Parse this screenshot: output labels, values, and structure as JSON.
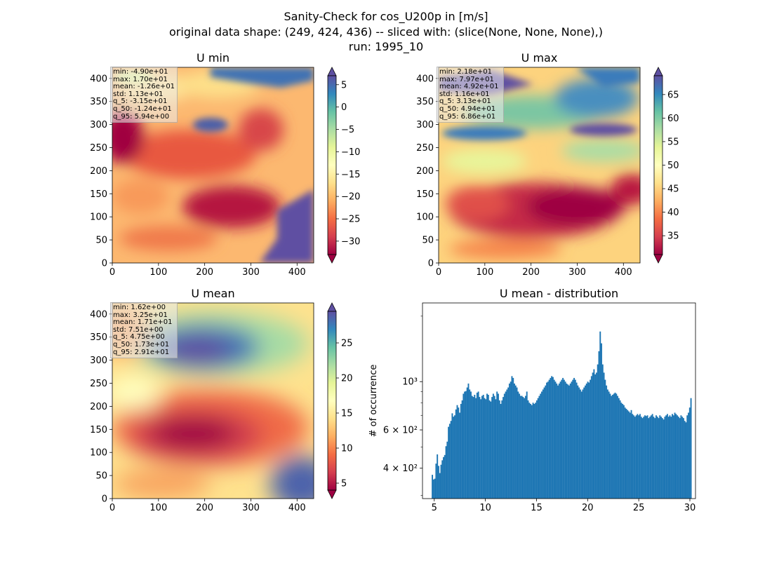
{
  "title_lines": [
    "Sanity-Check for cos_U200p in [m/s]",
    "original data shape: (249, 424, 436) -- sliced with: (slice(None, None, None),)",
    "run: 1995_10"
  ],
  "colors": {
    "hist_bar": "#1f77b4",
    "colormap": "Spectral"
  },
  "chart_data": [
    {
      "type": "heatmap",
      "title": "U min",
      "colormap": "Spectral",
      "xlim": [
        0,
        436
      ],
      "ylim": [
        0,
        424
      ],
      "xticks": [
        0,
        100,
        200,
        300,
        400
      ],
      "yticks": [
        0,
        50,
        100,
        150,
        200,
        250,
        300,
        350,
        400
      ],
      "colorbar": {
        "range": [
          -33,
          7
        ],
        "ticks": [
          5,
          0,
          -5,
          -10,
          -15,
          -20,
          -25,
          -30
        ],
        "ticklabels": [
          "5",
          "0",
          "−5",
          "−10",
          "−15",
          "−20",
          "−25",
          "−30"
        ],
        "extend": "both"
      },
      "stats": [
        "min: -4.90e+01",
        "max: 1.70e+01",
        "mean: -1.26e+01",
        "std: 1.13e+01",
        "q_5: -3.15e+01",
        "q_50: -1.24e+01",
        "q_95: 5.94e+00"
      ]
    },
    {
      "type": "heatmap",
      "title": "U max",
      "colormap": "Spectral",
      "xlim": [
        0,
        436
      ],
      "ylim": [
        0,
        424
      ],
      "xticks": [
        0,
        100,
        200,
        300,
        400
      ],
      "yticks": [
        0,
        50,
        100,
        150,
        200,
        250,
        300,
        350,
        400
      ],
      "colorbar": {
        "range": [
          31,
          69
        ],
        "ticks": [
          65,
          60,
          55,
          50,
          45,
          40,
          35
        ],
        "ticklabels": [
          "65",
          "60",
          "55",
          "50",
          "45",
          "40",
          "35"
        ],
        "extend": "both"
      },
      "stats": [
        "min: 2.18e+01",
        "max: 7.97e+01",
        "mean: 4.92e+01",
        "std: 1.16e+01",
        "q_5: 3.13e+01",
        "q_50: 4.94e+01",
        "q_95: 6.86e+01"
      ]
    },
    {
      "type": "heatmap",
      "title": "U mean",
      "colormap": "Spectral",
      "xlim": [
        0,
        436
      ],
      "ylim": [
        0,
        424
      ],
      "xticks": [
        0,
        100,
        200,
        300,
        400
      ],
      "yticks": [
        0,
        50,
        100,
        150,
        200,
        250,
        300,
        350,
        400
      ],
      "colorbar": {
        "range": [
          4,
          29.5
        ],
        "ticks": [
          25,
          20,
          15,
          10,
          5
        ],
        "ticklabels": [
          "25",
          "20",
          "15",
          "10",
          "5"
        ],
        "extend": "both"
      },
      "stats": [
        "min: 1.62e+00",
        "max: 3.25e+01",
        "mean: 1.71e+01",
        "std: 7.51e+00",
        "q_5: 4.75e+00",
        "q_50: 1.73e+01",
        "q_95: 2.91e+01"
      ]
    },
    {
      "type": "bar",
      "title": "U mean - distribution",
      "ylabel": "# of occurrence",
      "yscale": "log",
      "xlim": [
        3.85,
        30.55
      ],
      "ylim": [
        290,
        2300
      ],
      "xticks": [
        5,
        10,
        15,
        20,
        25,
        30
      ],
      "yticks": [
        {
          "value": 400,
          "label": "4 × 10²"
        },
        {
          "value": 600,
          "label": "6 × 10²"
        },
        {
          "value": 1000,
          "label": "10³"
        }
      ],
      "bin_start": 4.75,
      "bin_width": 0.1216,
      "values": [
        373,
        355,
        358,
        420,
        463,
        410,
        380,
        415,
        435,
        450,
        460,
        505,
        530,
        620,
        640,
        660,
        715,
        690,
        700,
        745,
        780,
        760,
        720,
        790,
        820,
        880,
        900,
        905,
        940,
        980,
        920,
        900,
        860,
        850,
        870,
        840,
        890,
        900,
        850,
        830,
        860,
        870,
        840,
        830,
        880,
        870,
        820,
        810,
        850,
        880,
        860,
        830,
        900,
        880,
        820,
        790,
        820,
        850,
        880,
        900,
        920,
        940,
        980,
        1000,
        1060,
        1040,
        980,
        960,
        940,
        900,
        880,
        860,
        860,
        850,
        840,
        860,
        900,
        820,
        800,
        790,
        780,
        800,
        790,
        800,
        820,
        840,
        860,
        880,
        900,
        920,
        940,
        960,
        990,
        1000,
        1020,
        1040,
        1060,
        1050,
        1020,
        1000,
        980,
        960,
        980,
        1000,
        1020,
        1040,
        1020,
        1000,
        980,
        970,
        960,
        980,
        1000,
        1020,
        1040,
        1020,
        990,
        960,
        940,
        920,
        900,
        920,
        940,
        960,
        980,
        1000,
        990,
        1020,
        1060,
        1100,
        1140,
        1080,
        1100,
        1200,
        1380,
        1700,
        1500,
        1200,
        1100,
        1020,
        960,
        920,
        900,
        880,
        860,
        870,
        880,
        890,
        880,
        860,
        840,
        820,
        800,
        790,
        780,
        760,
        750,
        740,
        730,
        720,
        740,
        710,
        700,
        690,
        700,
        710,
        700,
        710,
        690,
        680,
        690,
        700,
        695,
        700,
        680,
        690,
        700,
        710,
        690,
        680,
        700,
        690,
        680,
        700,
        690,
        680,
        670,
        690,
        700,
        710,
        690,
        700,
        690,
        710,
        700,
        720,
        710,
        700,
        690,
        680,
        700,
        690,
        680,
        660,
        650,
        700,
        720,
        760,
        840
      ]
    }
  ]
}
